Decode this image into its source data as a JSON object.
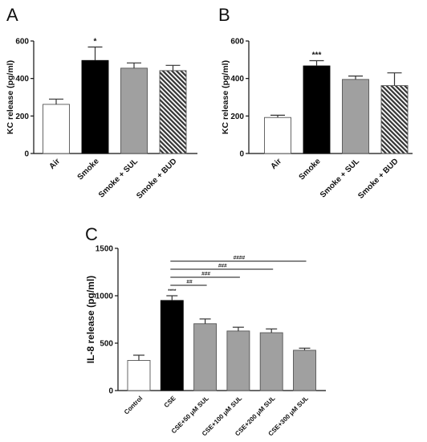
{
  "panels": [
    {
      "letter": "A"
    },
    {
      "letter": "B"
    },
    {
      "letter": "C"
    }
  ],
  "chart_data": [
    {
      "type": "bar",
      "categories": [
        "Air",
        "Smoke",
        "Smoke + SUL",
        "Smoke + BUD"
      ],
      "values": [
        262,
        496,
        455,
        442
      ],
      "errors": [
        28,
        72,
        28,
        28
      ],
      "annotations": [
        "",
        "*",
        "",
        ""
      ],
      "colors": [
        "#ffffff",
        "#000000",
        "#a0a0a0",
        "hatch"
      ],
      "ylabel": "KC release (pg/ml)",
      "ylim": [
        0,
        600
      ],
      "yticks": [
        0,
        200,
        400,
        600
      ]
    },
    {
      "type": "bar",
      "categories": [
        "Air",
        "Smoke",
        "Smoke + SUL",
        "Smoke + BUD"
      ],
      "values": [
        192,
        467,
        395,
        362
      ],
      "errors": [
        12,
        28,
        18,
        68
      ],
      "annotations": [
        "",
        "***",
        "",
        ""
      ],
      "colors": [
        "#ffffff",
        "#000000",
        "#a0a0a0",
        "hatch"
      ],
      "ylabel": "KC release (pg/ml)",
      "ylim": [
        0,
        600
      ],
      "yticks": [
        0,
        200,
        400,
        600
      ]
    },
    {
      "type": "bar",
      "categories": [
        "Control",
        "CSE",
        "CSE+50 μM SUL",
        "CSE+100 μM SUL",
        "CSE+200 μM SUL",
        "CSE+300 μM SUL"
      ],
      "values": [
        318,
        950,
        705,
        628,
        610,
        425
      ],
      "errors": [
        55,
        50,
        50,
        40,
        40,
        22
      ],
      "annotations": [
        "",
        "****",
        "",
        "",
        "",
        ""
      ],
      "colors": [
        "#ffffff",
        "#000000",
        "#a0a0a0",
        "#a0a0a0",
        "#a0a0a0",
        "#a0a0a0"
      ],
      "ylabel": "IL-8 release (pg/ml)",
      "ylim": [
        0,
        1500
      ],
      "yticks": [
        0,
        500,
        1000,
        1500
      ],
      "comparisons": [
        {
          "from": 1,
          "to": 2,
          "label": "##"
        },
        {
          "from": 1,
          "to": 3,
          "label": "###"
        },
        {
          "from": 1,
          "to": 4,
          "label": "###"
        },
        {
          "from": 1,
          "to": 5,
          "label": "####"
        }
      ]
    }
  ]
}
